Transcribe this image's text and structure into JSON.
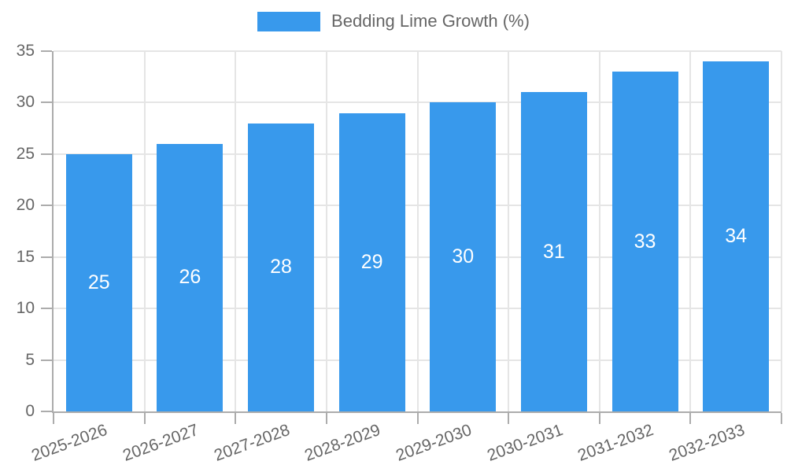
{
  "chart_data": {
    "type": "bar",
    "title": "Bedding Lime Growth (%)",
    "categories": [
      "2025-2026",
      "2026-2027",
      "2027-2028",
      "2028-2029",
      "2029-2030",
      "2030-2031",
      "2031-2032",
      "2032-2033"
    ],
    "values": [
      25,
      26,
      28,
      29,
      30,
      31,
      33,
      34
    ],
    "bar_value_labels": [
      "25",
      "26",
      "28",
      "29",
      "30",
      "31",
      "33",
      "34"
    ],
    "xlabel": "",
    "ylabel": "",
    "ylim": [
      0,
      35
    ],
    "yticks": [
      0,
      5,
      10,
      15,
      20,
      25,
      30,
      35
    ],
    "grid": true,
    "legend_position": "top",
    "bar_color": "#3899ec",
    "bar_label_color": "#ffffff",
    "axis_text_color": "#666666",
    "axis_line_color": "#acacac",
    "grid_color": "#e5e5e5",
    "background_color": "#ffffff"
  },
  "legend": {
    "label": "Bedding Lime Growth (%)"
  }
}
